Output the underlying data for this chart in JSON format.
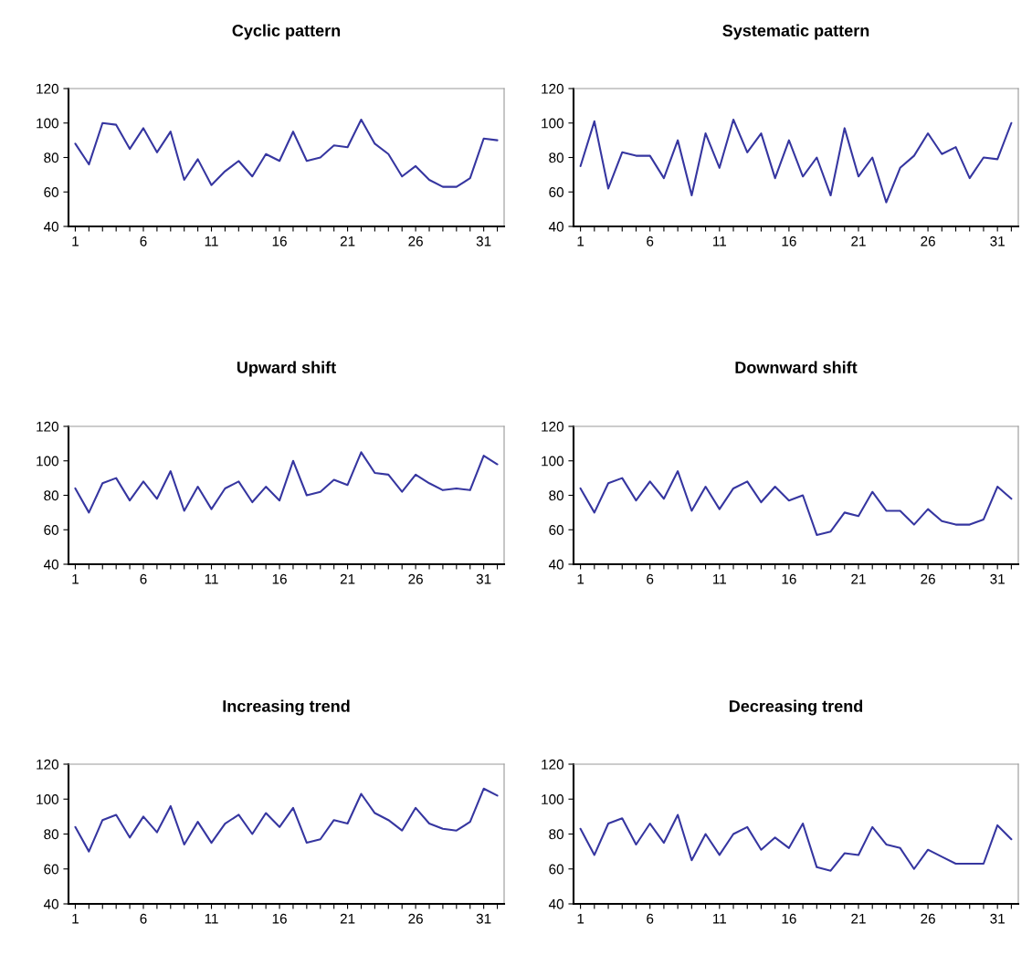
{
  "chart_data": [
    {
      "type": "line",
      "title": "Cyclic pattern",
      "categories": [
        "1",
        null,
        null,
        null,
        null,
        "6",
        null,
        null,
        null,
        null,
        "11",
        null,
        null,
        null,
        null,
        "16",
        null,
        null,
        null,
        null,
        "21",
        null,
        null,
        null,
        null,
        "26",
        null,
        null,
        null,
        null,
        "31",
        null
      ],
      "color": "#3636a0",
      "ylim": [
        40,
        120
      ],
      "yticks": [
        40,
        60,
        80,
        100,
        120
      ],
      "values": [
        88,
        76,
        100,
        99,
        85,
        97,
        83,
        95,
        67,
        79,
        64,
        72,
        78,
        69,
        82,
        78,
        95,
        78,
        80,
        87,
        86,
        102,
        88,
        82,
        69,
        75,
        67,
        63,
        63,
        68,
        91,
        90
      ]
    },
    {
      "type": "line",
      "title": "Systematic pattern",
      "categories": [
        "1",
        null,
        null,
        null,
        null,
        "6",
        null,
        null,
        null,
        null,
        "11",
        null,
        null,
        null,
        null,
        "16",
        null,
        null,
        null,
        null,
        "21",
        null,
        null,
        null,
        null,
        "26",
        null,
        null,
        null,
        null,
        "31",
        null
      ],
      "color": "#3636a0",
      "ylim": [
        40,
        120
      ],
      "yticks": [
        40,
        60,
        80,
        100,
        120
      ],
      "values": [
        75,
        101,
        62,
        83,
        81,
        81,
        68,
        90,
        58,
        94,
        74,
        102,
        83,
        94,
        68,
        90,
        69,
        80,
        58,
        97,
        69,
        80,
        54,
        74,
        81,
        94,
        82,
        86,
        68,
        80,
        79,
        100
      ]
    },
    {
      "type": "line",
      "title": "Upward shift",
      "categories": [
        "1",
        null,
        null,
        null,
        null,
        "6",
        null,
        null,
        null,
        null,
        "11",
        null,
        null,
        null,
        null,
        "16",
        null,
        null,
        null,
        null,
        "21",
        null,
        null,
        null,
        null,
        "26",
        null,
        null,
        null,
        null,
        "31",
        null
      ],
      "color": "#3636a0",
      "ylim": [
        40,
        120
      ],
      "yticks": [
        40,
        60,
        80,
        100,
        120
      ],
      "values": [
        84,
        70,
        87,
        90,
        77,
        88,
        78,
        94,
        71,
        85,
        72,
        84,
        88,
        76,
        85,
        77,
        100,
        80,
        82,
        89,
        86,
        105,
        93,
        92,
        82,
        92,
        87,
        83,
        84,
        83,
        103,
        98
      ]
    },
    {
      "type": "line",
      "title": "Downward shift",
      "categories": [
        "1",
        null,
        null,
        null,
        null,
        "6",
        null,
        null,
        null,
        null,
        "11",
        null,
        null,
        null,
        null,
        "16",
        null,
        null,
        null,
        null,
        "21",
        null,
        null,
        null,
        null,
        "26",
        null,
        null,
        null,
        null,
        "31",
        null
      ],
      "color": "#3636a0",
      "ylim": [
        40,
        120
      ],
      "yticks": [
        40,
        60,
        80,
        100,
        120
      ],
      "values": [
        84,
        70,
        87,
        90,
        77,
        88,
        78,
        94,
        71,
        85,
        72,
        84,
        88,
        76,
        85,
        77,
        80,
        57,
        59,
        70,
        68,
        82,
        71,
        71,
        63,
        72,
        65,
        63,
        63,
        66,
        85,
        78
      ]
    },
    {
      "type": "line",
      "title": "Increasing trend",
      "categories": [
        "1",
        null,
        null,
        null,
        null,
        "6",
        null,
        null,
        null,
        null,
        "11",
        null,
        null,
        null,
        null,
        "16",
        null,
        null,
        null,
        null,
        "21",
        null,
        null,
        null,
        null,
        "26",
        null,
        null,
        null,
        null,
        "31",
        null
      ],
      "color": "#3636a0",
      "ylim": [
        40,
        120
      ],
      "yticks": [
        40,
        60,
        80,
        100,
        120
      ],
      "values": [
        84,
        70,
        88,
        91,
        78,
        90,
        81,
        96,
        74,
        87,
        75,
        86,
        91,
        80,
        92,
        84,
        95,
        75,
        77,
        88,
        86,
        103,
        92,
        88,
        82,
        95,
        86,
        83,
        82,
        87,
        106,
        102
      ]
    },
    {
      "type": "line",
      "title": "Decreasing trend",
      "categories": [
        "1",
        null,
        null,
        null,
        null,
        "6",
        null,
        null,
        null,
        null,
        "11",
        null,
        null,
        null,
        null,
        "16",
        null,
        null,
        null,
        null,
        "21",
        null,
        null,
        null,
        null,
        "26",
        null,
        null,
        null,
        null,
        "31",
        null
      ],
      "color": "#3636a0",
      "ylim": [
        40,
        120
      ],
      "yticks": [
        40,
        60,
        80,
        100,
        120
      ],
      "values": [
        83,
        68,
        86,
        89,
        74,
        86,
        75,
        91,
        65,
        80,
        68,
        80,
        84,
        71,
        78,
        72,
        86,
        61,
        59,
        69,
        68,
        84,
        74,
        72,
        60,
        71,
        67,
        63,
        63,
        63,
        85,
        77
      ]
    }
  ]
}
